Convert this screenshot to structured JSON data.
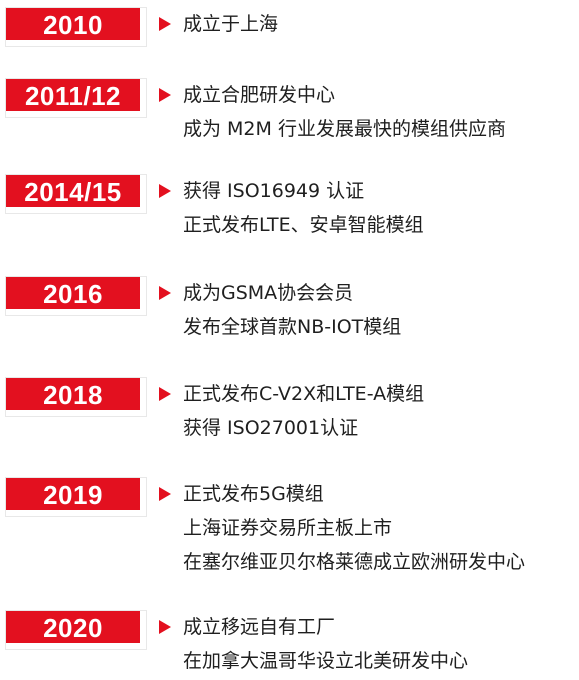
{
  "timeline": {
    "entries": [
      {
        "year": "2010",
        "lines": [
          "成立于上海"
        ]
      },
      {
        "year": "2011/12",
        "lines": [
          "成立合肥研发中心",
          "成为 M2M 行业发展最快的模组供应商"
        ]
      },
      {
        "year": "2014/15",
        "lines": [
          "获得 ISO16949 认证",
          "正式发布LTE、安卓智能模组"
        ]
      },
      {
        "year": "2016",
        "lines": [
          "成为GSMA协会会员",
          "发布全球首款NB-IOT模组"
        ]
      },
      {
        "year": "2018",
        "lines": [
          "正式发布C-V2X和LTE-A模组",
          "获得 ISO27001认证"
        ]
      },
      {
        "year": "2019",
        "lines": [
          "正式发布5G模组",
          "上海证券交易所主板上市",
          "在塞尔维亚贝尔格莱德成立欧洲研发中心"
        ]
      },
      {
        "year": "2020",
        "lines": [
          "成立移远自有工厂",
          "在加拿大温哥华设立北美研发中心"
        ]
      }
    ],
    "colors": {
      "accent": "#e3101f",
      "text": "#1f1f1f"
    }
  }
}
